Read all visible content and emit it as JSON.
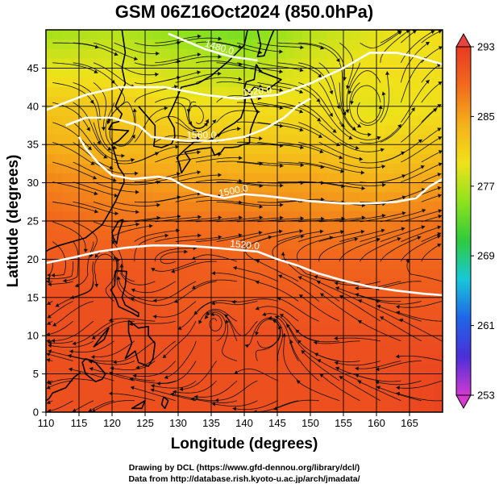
{
  "chart_data": {
    "type": "heatmap",
    "title": "GSM 06Z16Oct2024 (850.0hPa)",
    "xlabel": "Longitude (degrees)",
    "ylabel": "Latitude  (degrees)",
    "xlim": [
      110,
      170
    ],
    "ylim": [
      0,
      50
    ],
    "x_ticks": [
      110,
      115,
      120,
      125,
      130,
      135,
      140,
      145,
      150,
      155,
      160,
      165
    ],
    "y_ticks": [
      0,
      5,
      10,
      15,
      20,
      25,
      30,
      35,
      40,
      45
    ],
    "grid": true,
    "colorbar": {
      "min": 253,
      "max": 293,
      "ticks": [
        253,
        261,
        269,
        277,
        285,
        293
      ],
      "colors": [
        "#d23ad0",
        "#4a2fd8",
        "#1f66e8",
        "#18c8d8",
        "#2ecb3c",
        "#8ee21d",
        "#f0e21a",
        "#f5b01a",
        "#f26a1c",
        "#e83a22"
      ],
      "placement": "right"
    },
    "field_samples": {
      "lons": [
        110,
        120,
        130,
        140,
        150,
        160,
        170
      ],
      "lats": [
        50,
        45,
        40,
        35,
        30,
        25,
        20,
        15,
        10,
        5,
        0
      ],
      "values": [
        [
          276,
          277,
          275,
          274,
          277,
          279,
          280
        ],
        [
          279,
          279,
          278,
          277,
          279,
          280,
          280
        ],
        [
          282,
          282,
          280,
          280,
          280,
          279,
          280
        ],
        [
          284,
          283,
          283,
          282,
          282,
          281,
          282
        ],
        [
          287,
          286,
          285,
          285,
          285,
          284,
          285
        ],
        [
          289,
          288,
          288,
          288,
          287,
          287,
          288
        ],
        [
          290,
          290,
          290,
          289,
          289,
          289,
          289
        ],
        [
          291,
          291,
          290,
          290,
          290,
          290,
          290
        ],
        [
          291,
          291,
          291,
          291,
          291,
          291,
          291
        ],
        [
          291,
          291,
          291,
          291,
          291,
          291,
          292
        ],
        [
          291,
          291,
          291,
          291,
          291,
          291,
          292
        ]
      ]
    },
    "contours": [
      {
        "label": "1480.0",
        "points": [
          [
            128.5,
            49.5
          ],
          [
            134,
            47.5
          ],
          [
            138,
            46.5
          ],
          [
            142,
            46
          ]
        ]
      },
      {
        "label": "1520.0",
        "points": [
          [
            110,
            39.5
          ],
          [
            116,
            41.5
          ],
          [
            121,
            42.5
          ],
          [
            128,
            42.5
          ],
          [
            134,
            41.5
          ],
          [
            139,
            41
          ],
          [
            145,
            41.5
          ],
          [
            150,
            43
          ],
          [
            155,
            45
          ],
          [
            159,
            47
          ],
          [
            163,
            47
          ],
          [
            166,
            46.5
          ],
          [
            170,
            45.5
          ]
        ]
      },
      {
        "label": "1560.0",
        "points": [
          [
            113,
            37.5
          ],
          [
            116,
            38.5
          ],
          [
            120,
            38.5
          ],
          [
            124,
            37.5
          ],
          [
            126,
            36
          ],
          [
            131,
            35.5
          ],
          [
            136,
            35.5
          ],
          [
            140,
            36
          ],
          [
            143,
            37
          ],
          [
            146,
            38.5
          ],
          [
            148,
            40
          ],
          [
            150,
            41
          ]
        ]
      },
      {
        "label": "1500.0",
        "points": [
          [
            115,
            36
          ],
          [
            116,
            34.5
          ],
          [
            118,
            32.5
          ],
          [
            120,
            31
          ],
          [
            123,
            30.5
          ],
          [
            127,
            30.8
          ],
          [
            129,
            30.5
          ],
          [
            131,
            29.5
          ],
          [
            134,
            28.5
          ],
          [
            137,
            28
          ],
          [
            140,
            28.5
          ],
          [
            143,
            28.3
          ],
          [
            146,
            28
          ],
          [
            150,
            27.6
          ],
          [
            155,
            27.3
          ],
          [
            159,
            27.3
          ],
          [
            163,
            27.5
          ],
          [
            166,
            28
          ],
          [
            168,
            29.5
          ],
          [
            170,
            30.5
          ]
        ]
      },
      {
        "label": "1520.0",
        "points": [
          [
            110,
            19.5
          ],
          [
            114,
            20.2
          ],
          [
            118,
            21
          ],
          [
            122,
            21.5
          ],
          [
            126,
            21.8
          ],
          [
            130,
            21.8
          ],
          [
            134,
            21.6
          ],
          [
            138,
            21.3
          ],
          [
            142,
            21
          ],
          [
            145,
            20
          ],
          [
            148,
            19.2
          ],
          [
            151,
            18.2
          ],
          [
            155,
            17.2
          ],
          [
            159,
            16.4
          ],
          [
            163,
            15.9
          ],
          [
            167,
            15.5
          ],
          [
            170,
            15.3
          ]
        ]
      }
    ],
    "circulations": [
      {
        "lon": 121,
        "lat": 36,
        "r": 3.5
      },
      {
        "lon": 158.5,
        "lat": 39,
        "r": 5
      },
      {
        "lon": 135.5,
        "lat": 12,
        "r": 2.5
      },
      {
        "lon": 144,
        "lat": 11,
        "r": 2.5
      },
      {
        "lon": 133,
        "lat": 38,
        "r": 2
      },
      {
        "lon": 119,
        "lat": 19,
        "r": 2
      }
    ],
    "coastlines": [
      [
        [
          121.5,
          50
        ],
        [
          122,
          47
        ],
        [
          121.5,
          45
        ],
        [
          122,
          43
        ],
        [
          121,
          41
        ],
        [
          120.5,
          40
        ],
        [
          121.5,
          39
        ],
        [
          121,
          38
        ],
        [
          120,
          37.8
        ],
        [
          119.5,
          37
        ],
        [
          122.5,
          36.8
        ],
        [
          121,
          35.5
        ],
        [
          120,
          35
        ],
        [
          120.5,
          33.5
        ],
        [
          121,
          32
        ],
        [
          121.8,
          31
        ],
        [
          121.8,
          30
        ],
        [
          121,
          28.5
        ],
        [
          120.5,
          27.5
        ],
        [
          119.5,
          26
        ],
        [
          118.5,
          24.5
        ],
        [
          117,
          23.5
        ],
        [
          116,
          22.8
        ],
        [
          114,
          22.3
        ],
        [
          112,
          21.8
        ],
        [
          110.5,
          21.3
        ],
        [
          110,
          21
        ]
      ],
      [
        [
          124,
          40
        ],
        [
          125.5,
          38.5
        ],
        [
          126.5,
          37.5
        ],
        [
          126.5,
          36
        ],
        [
          126.3,
          34.8
        ],
        [
          127.5,
          34.6
        ],
        [
          129,
          35.1
        ],
        [
          129.5,
          36
        ],
        [
          129.4,
          37.2
        ],
        [
          128.5,
          38.6
        ],
        [
          129.5,
          40.5
        ],
        [
          130.5,
          42.5
        ],
        [
          133,
          43
        ],
        [
          135,
          44
        ],
        [
          137.5,
          45.8
        ],
        [
          140,
          48
        ],
        [
          140.5,
          50
        ]
      ],
      [
        [
          142,
          50
        ],
        [
          142.5,
          48
        ],
        [
          142,
          46.5
        ],
        [
          143,
          46.6
        ],
        [
          144,
          49
        ],
        [
          144.5,
          50
        ]
      ],
      [
        [
          141.8,
          45.5
        ],
        [
          141.5,
          43.5
        ],
        [
          140.3,
          43.2
        ],
        [
          140,
          42.3
        ],
        [
          140.8,
          41.8
        ],
        [
          141.5,
          42.5
        ],
        [
          143.3,
          42
        ],
        [
          144.8,
          43
        ],
        [
          145.6,
          43.5
        ],
        [
          142.5,
          44.5
        ],
        [
          141.8,
          45.5
        ]
      ],
      [
        [
          140.8,
          41.5
        ],
        [
          141.5,
          40
        ],
        [
          142,
          39.2
        ],
        [
          141.5,
          38.2
        ],
        [
          141,
          37
        ],
        [
          140.8,
          36
        ],
        [
          140.8,
          35.2
        ],
        [
          139.8,
          35
        ],
        [
          139,
          34.7
        ],
        [
          138,
          34.6
        ],
        [
          137,
          34.6
        ],
        [
          136.5,
          34
        ],
        [
          135.5,
          33.6
        ],
        [
          135,
          34.6
        ],
        [
          133,
          34.4
        ],
        [
          131,
          34
        ],
        [
          131.8,
          33
        ],
        [
          130.5,
          31.3
        ],
        [
          130.2,
          32.5
        ],
        [
          129.8,
          33.3
        ],
        [
          131,
          34.3
        ],
        [
          132.5,
          35.4
        ],
        [
          135,
          35.6
        ],
        [
          136,
          36.2
        ],
        [
          137,
          37
        ],
        [
          138.5,
          37.8
        ],
        [
          139.5,
          38.5
        ],
        [
          140,
          39.8
        ],
        [
          140.2,
          41.2
        ],
        [
          140.8,
          41.5
        ]
      ],
      [
        [
          121.7,
          25.2
        ],
        [
          121,
          23.5
        ],
        [
          120.7,
          22
        ],
        [
          120.2,
          22.8
        ],
        [
          120,
          23.5
        ],
        [
          121,
          25
        ],
        [
          121.7,
          25.2
        ]
      ],
      [
        [
          120.5,
          18.5
        ],
        [
          122.2,
          18.4
        ],
        [
          122,
          16.5
        ],
        [
          121.5,
          15
        ],
        [
          122,
          14
        ],
        [
          124,
          13
        ],
        [
          124,
          12.5
        ],
        [
          123,
          13
        ],
        [
          121,
          13.8
        ],
        [
          120.6,
          14.8
        ],
        [
          119.8,
          16
        ],
        [
          120.4,
          16.6
        ],
        [
          120.5,
          18.5
        ]
      ],
      [
        [
          122.5,
          12
        ],
        [
          124,
          11
        ],
        [
          125.5,
          11.2
        ],
        [
          125.5,
          10
        ],
        [
          126.5,
          9
        ],
        [
          126.2,
          7
        ],
        [
          125.5,
          6
        ],
        [
          124,
          6.5
        ],
        [
          123.5,
          8
        ],
        [
          122,
          7
        ],
        [
          123,
          9
        ],
        [
          122.5,
          10.5
        ],
        [
          122.5,
          12
        ]
      ],
      [
        [
          117.2,
          8.5
        ],
        [
          118.5,
          10
        ],
        [
          119.5,
          11
        ],
        [
          118.8,
          9.5
        ],
        [
          117.2,
          8.5
        ]
      ],
      [
        [
          116,
          7
        ],
        [
          117.5,
          6.5
        ],
        [
          119,
          5
        ],
        [
          118.5,
          4.3
        ],
        [
          117.5,
          4
        ],
        [
          116,
          5
        ],
        [
          115.5,
          6.5
        ],
        [
          116,
          7
        ]
      ],
      [
        [
          110,
          1.5
        ],
        [
          110.5,
          1.8
        ],
        [
          111,
          2.5
        ],
        [
          113,
          3.2
        ],
        [
          114.2,
          4.5
        ],
        [
          115.2,
          5.2
        ]
      ],
      [
        [
          127.8,
          2
        ],
        [
          128.5,
          1.5
        ],
        [
          128,
          0.5
        ],
        [
          127.5,
          1
        ],
        [
          127.8,
          2
        ]
      ],
      [
        [
          124,
          1
        ],
        [
          125,
          1.5
        ],
        [
          124.5,
          0.5
        ],
        [
          123,
          0.5
        ],
        [
          124,
          1
        ]
      ]
    ]
  },
  "footer": {
    "credit_line1": "Drawing by DCL (https://www.gfd-dennou.org/library/dcl/)",
    "credit_line2": "Data from http://database.rish.kyoto-u.ac.jp/arch/jmadata/"
  }
}
